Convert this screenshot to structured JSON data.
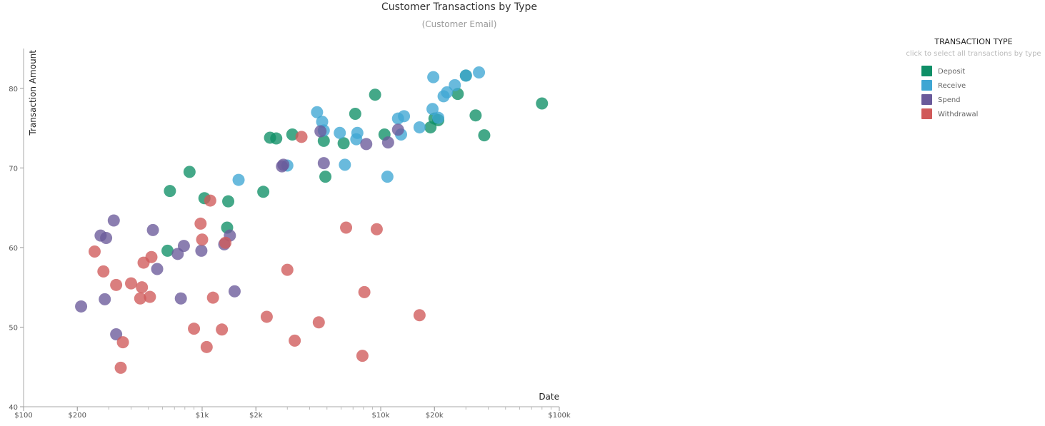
{
  "chart_data": {
    "type": "scatter",
    "title": "Customer Transactions by Type",
    "subtitle": "(Customer Email)",
    "xlabel": "Date",
    "ylabel": "Transaction Amount",
    "xscale": "log",
    "xlim": [
      100,
      100000
    ],
    "ylim": [
      40,
      85
    ],
    "x_ticks": [
      {
        "value": 100,
        "label": "$100"
      },
      {
        "value": 200,
        "label": "$200"
      },
      {
        "value": 1000,
        "label": "$1k"
      },
      {
        "value": 2000,
        "label": "$2k"
      },
      {
        "value": 10000,
        "label": "$10k"
      },
      {
        "value": 20000,
        "label": "$20k"
      },
      {
        "value": 100000,
        "label": "$100k"
      }
    ],
    "y_ticks": [
      40,
      50,
      60,
      70,
      80
    ],
    "grid": false,
    "legend": {
      "title": "TRANSACTION TYPE",
      "subtitle": "click to select all transactions by type",
      "position": "top-right"
    },
    "series": [
      {
        "name": "Deposit",
        "color": "#0f8f67",
        "points": [
          [
            640,
            59.6
          ],
          [
            660,
            67.1
          ],
          [
            850,
            69.5
          ],
          [
            1030,
            66.2
          ],
          [
            1380,
            62.5
          ],
          [
            1400,
            65.8
          ],
          [
            2200,
            67.0
          ],
          [
            2400,
            73.8
          ],
          [
            2600,
            73.7
          ],
          [
            3200,
            74.2
          ],
          [
            4800,
            73.4
          ],
          [
            4900,
            68.9
          ],
          [
            6200,
            73.1
          ],
          [
            7200,
            76.8
          ],
          [
            9300,
            79.2
          ],
          [
            10500,
            74.2
          ],
          [
            19000,
            75.1
          ],
          [
            20000,
            76.2
          ],
          [
            21000,
            76.0
          ],
          [
            27000,
            79.3
          ],
          [
            30000,
            81.6
          ],
          [
            34000,
            76.6
          ],
          [
            38000,
            74.1
          ],
          [
            80000,
            78.1
          ]
        ]
      },
      {
        "name": "Receive",
        "color": "#3fa6d3",
        "points": [
          [
            1600,
            68.5
          ],
          [
            3000,
            70.3
          ],
          [
            4400,
            77.0
          ],
          [
            4700,
            75.8
          ],
          [
            4800,
            74.7
          ],
          [
            5900,
            74.4
          ],
          [
            6300,
            70.4
          ],
          [
            7300,
            73.6
          ],
          [
            7400,
            74.4
          ],
          [
            10900,
            68.9
          ],
          [
            12500,
            76.2
          ],
          [
            13000,
            74.2
          ],
          [
            13500,
            76.5
          ],
          [
            16500,
            75.1
          ],
          [
            19500,
            77.4
          ],
          [
            19700,
            81.4
          ],
          [
            21000,
            76.3
          ],
          [
            22500,
            79.0
          ],
          [
            23500,
            79.5
          ],
          [
            26000,
            80.4
          ],
          [
            30000,
            81.6
          ],
          [
            35500,
            82.0
          ]
        ]
      },
      {
        "name": "Spend",
        "color": "#6a5a9a",
        "points": [
          [
            210,
            52.6
          ],
          [
            270,
            61.5
          ],
          [
            285,
            53.5
          ],
          [
            290,
            61.2
          ],
          [
            320,
            63.4
          ],
          [
            330,
            49.1
          ],
          [
            530,
            62.2
          ],
          [
            560,
            57.3
          ],
          [
            730,
            59.2
          ],
          [
            760,
            53.6
          ],
          [
            790,
            60.2
          ],
          [
            990,
            59.6
          ],
          [
            1330,
            60.4
          ],
          [
            1430,
            61.5
          ],
          [
            1520,
            54.5
          ],
          [
            2850,
            70.4
          ],
          [
            2800,
            70.2
          ],
          [
            4600,
            74.6
          ],
          [
            4800,
            70.6
          ],
          [
            8300,
            73.0
          ],
          [
            11000,
            73.2
          ],
          [
            12500,
            74.8
          ]
        ]
      },
      {
        "name": "Withdrawal",
        "color": "#d05a5a",
        "points": [
          [
            250,
            59.5
          ],
          [
            280,
            57.0
          ],
          [
            330,
            55.3
          ],
          [
            350,
            44.9
          ],
          [
            360,
            48.1
          ],
          [
            400,
            55.5
          ],
          [
            450,
            53.6
          ],
          [
            460,
            55.0
          ],
          [
            470,
            58.1
          ],
          [
            510,
            53.8
          ],
          [
            520,
            58.8
          ],
          [
            900,
            49.8
          ],
          [
            980,
            63.0
          ],
          [
            1000,
            61.0
          ],
          [
            1060,
            47.5
          ],
          [
            1110,
            65.9
          ],
          [
            1150,
            53.7
          ],
          [
            1290,
            49.7
          ],
          [
            1350,
            60.6
          ],
          [
            2300,
            51.3
          ],
          [
            3000,
            57.2
          ],
          [
            3300,
            48.3
          ],
          [
            3600,
            73.9
          ],
          [
            4500,
            50.6
          ],
          [
            6400,
            62.5
          ],
          [
            7900,
            46.4
          ],
          [
            8100,
            54.4
          ],
          [
            9500,
            62.3
          ],
          [
            16500,
            51.5
          ]
        ]
      }
    ]
  }
}
